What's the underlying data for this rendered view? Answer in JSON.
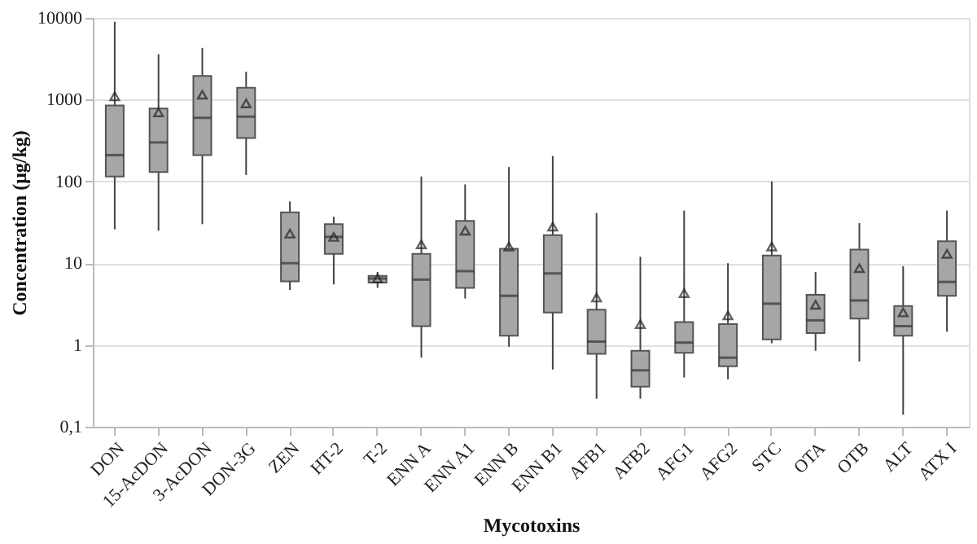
{
  "chart_data": {
    "type": "box",
    "xlabel": "Mycotoxins",
    "ylabel": "Concentration (μg/kg)",
    "categories": [
      "DON",
      "15-AcDON",
      "3-AcDON",
      "DON-3G",
      "ZEN",
      "HT-2",
      "T-2",
      "ENN A",
      "ENN A1",
      "ENN B",
      "ENN B1",
      "AFB1",
      "AFB2",
      "AFG1",
      "AFG2",
      "STC",
      "OTA",
      "OTB",
      "ALT",
      "ATX I"
    ],
    "series": [
      {
        "color": "#a6a6a6",
        "boxes": [
          {
            "low": 26,
            "q1": 115,
            "median": 210,
            "q3": 850,
            "high": 9000,
            "mean": 1100
          },
          {
            "low": 25,
            "q1": 130,
            "median": 300,
            "q3": 780,
            "high": 3600,
            "mean": 700
          },
          {
            "low": 30,
            "q1": 210,
            "median": 600,
            "q3": 1950,
            "high": 4300,
            "mean": 1150
          },
          {
            "low": 120,
            "q1": 340,
            "median": 620,
            "q3": 1400,
            "high": 2200,
            "mean": 900
          },
          {
            "low": 4.7,
            "q1": 6,
            "median": 10,
            "q3": 42,
            "high": 57,
            "mean": 23
          },
          {
            "low": 5.5,
            "q1": 13,
            "median": 21,
            "q3": 30,
            "high": 37,
            "mean": 21
          },
          {
            "low": 5,
            "q1": 5.8,
            "median": 6.5,
            "q3": 7,
            "high": 7.8,
            "mean": 6.5
          },
          {
            "low": 0.7,
            "q1": 1.7,
            "median": 6.3,
            "q3": 13,
            "high": 115,
            "mean": 17
          },
          {
            "low": 3.7,
            "q1": 5,
            "median": 8,
            "q3": 33,
            "high": 92,
            "mean": 25
          },
          {
            "low": 0.95,
            "q1": 1.3,
            "median": 4,
            "q3": 15,
            "high": 150,
            "mean": 16
          },
          {
            "low": 0.5,
            "q1": 2.5,
            "median": 7.5,
            "q3": 22,
            "high": 205,
            "mean": 28
          },
          {
            "low": 0.22,
            "q1": 0.78,
            "median": 1.1,
            "q3": 2.7,
            "high": 41,
            "mean": 3.8
          },
          {
            "low": 0.22,
            "q1": 0.31,
            "median": 0.49,
            "q3": 0.85,
            "high": 12,
            "mean": 1.8
          },
          {
            "low": 0.4,
            "q1": 0.8,
            "median": 1.07,
            "q3": 1.9,
            "high": 44,
            "mean": 4.3
          },
          {
            "low": 0.38,
            "q1": 0.55,
            "median": 0.7,
            "q3": 1.8,
            "high": 10,
            "mean": 2.3
          },
          {
            "low": 1.05,
            "q1": 1.17,
            "median": 3.2,
            "q3": 12.4,
            "high": 100,
            "mean": 16
          },
          {
            "low": 0.85,
            "q1": 1.4,
            "median": 2,
            "q3": 4.1,
            "high": 7.8,
            "mean": 3.1
          },
          {
            "low": 0.63,
            "q1": 2.1,
            "median": 3.5,
            "q3": 14.7,
            "high": 31,
            "mean": 8.7
          },
          {
            "low": 0.14,
            "q1": 1.3,
            "median": 1.7,
            "q3": 3,
            "high": 9.2,
            "mean": 2.5
          },
          {
            "low": 1.45,
            "q1": 4,
            "median": 5.9,
            "q3": 18.6,
            "high": 44,
            "mean": 13
          }
        ]
      }
    ],
    "log": true,
    "ylim": [
      0.1,
      10000
    ],
    "yticks": [
      {
        "value": 0.1,
        "label": "0,1"
      },
      1,
      10,
      100,
      1000,
      10000
    ],
    "grid": "y",
    "marker": "triangle"
  }
}
